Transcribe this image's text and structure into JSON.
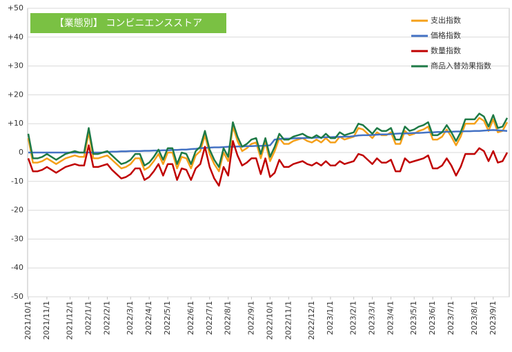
{
  "chart_data": {
    "type": "line",
    "title": "【業態別】 コンビニエンスストア",
    "title_color": "#7ac143",
    "legend": "top-right",
    "grid": true,
    "ylim": [
      -50,
      50
    ],
    "yticks": [
      {
        "value": 50,
        "label": "+50"
      },
      {
        "value": 40,
        "label": "+40"
      },
      {
        "value": 30,
        "label": "+30"
      },
      {
        "value": 20,
        "label": "+20"
      },
      {
        "value": 10,
        "label": "+10"
      },
      0,
      -10,
      -20,
      -30,
      -40,
      -50
    ],
    "categories": [
      "2021/10/1",
      null,
      null,
      null,
      "2021/11/1",
      null,
      null,
      null,
      null,
      "2021/12/1",
      null,
      null,
      null,
      "2022/1/1",
      null,
      null,
      null,
      "2022/2/1",
      null,
      null,
      null,
      null,
      "2022/3/1",
      null,
      null,
      null,
      "2022/4/1",
      null,
      null,
      null,
      "2022/5/1",
      null,
      null,
      null,
      null,
      "2022/6/1",
      null,
      null,
      null,
      "2022/7/1",
      null,
      null,
      null,
      "2022/8/1",
      null,
      null,
      null,
      null,
      "2022/9/1",
      null,
      null,
      null,
      "2022/10/1",
      null,
      null,
      null,
      "2022/11/1",
      null,
      null,
      null,
      null,
      "2022/12/1",
      null,
      null,
      null,
      "2023/1/1",
      null,
      null,
      null,
      null,
      "2023/2/1",
      null,
      null,
      null,
      "2023/3/1",
      null,
      null,
      null,
      "2023/4/1",
      null,
      null,
      null,
      null,
      "2023/5/1",
      null,
      null,
      null,
      "2023/6/1",
      null,
      null,
      null,
      "2023/7/1",
      null,
      null,
      null,
      null,
      "2023/8/1",
      null,
      null,
      null,
      "2023/9/1",
      null,
      null,
      null
    ],
    "series": [
      {
        "name": "支出指数",
        "color": "#f5a01a",
        "values": [
          5,
          -3.5,
          -3.5,
          -3,
          -2,
          -3,
          -4,
          -3,
          -2,
          -1.5,
          -1,
          -1.5,
          -1.5,
          7,
          -2,
          -2,
          -1.5,
          -1,
          -2.5,
          -4,
          -5.5,
          -5,
          -4,
          -2,
          -2,
          -6,
          -5,
          -3,
          -0.5,
          -4,
          0,
          0,
          -5.5,
          -1.5,
          -2,
          -5.5,
          -1,
          0.5,
          6,
          -0.5,
          -4,
          -6.5,
          0,
          -3,
          9,
          4,
          0.5,
          1.5,
          3,
          3.5,
          -2,
          3.5,
          -3,
          0.5,
          5,
          3,
          3,
          4,
          4.5,
          5,
          4,
          3.5,
          4.5,
          3.5,
          5,
          3.5,
          3.5,
          5.5,
          4.5,
          5,
          5.5,
          8.5,
          8,
          6.5,
          5,
          7,
          6,
          6,
          7,
          3,
          3,
          7.5,
          6,
          6.5,
          7.5,
          8,
          9,
          4.5,
          4.5,
          5.5,
          8,
          5.5,
          2.5,
          5.5,
          10,
          10,
          10,
          12,
          11,
          7.5,
          11.5,
          7,
          7.5,
          10.5
        ]
      },
      {
        "name": "価格指数",
        "color": "#4472c4",
        "values": [
          0,
          0,
          0,
          0,
          0,
          0,
          0,
          0,
          0,
          0,
          0,
          0,
          0,
          0,
          0,
          0,
          0,
          0.2,
          0.3,
          0.3,
          0.4,
          0.4,
          0.5,
          0.5,
          0.5,
          0.6,
          0.6,
          0.7,
          0.7,
          0.8,
          0.8,
          0.9,
          0.9,
          1,
          1,
          1.2,
          1.3,
          1.5,
          1.6,
          1.7,
          1.8,
          1.8,
          1.9,
          2,
          2,
          2.1,
          2.1,
          2.2,
          2.2,
          2.3,
          2.3,
          2.4,
          2.5,
          4.5,
          4.7,
          4.8,
          4.8,
          4.9,
          5,
          5,
          5.1,
          5.1,
          5.2,
          5.2,
          5.3,
          5.3,
          5.4,
          5.4,
          5.5,
          5.5,
          5.7,
          5.9,
          6,
          6,
          6.1,
          6.2,
          6.3,
          6.3,
          6.4,
          6.5,
          6.6,
          6.6,
          6.7,
          6.8,
          6.8,
          6.9,
          7,
          7,
          7.1,
          7.1,
          7.2,
          7.2,
          7.3,
          7.3,
          7.4,
          7.4,
          7.5,
          7.5,
          7.6,
          7.7,
          7.8,
          7.7,
          7.6,
          7.5
        ]
      },
      {
        "name": "数量指数",
        "color": "#c00000",
        "values": [
          -2,
          -6.5,
          -6.5,
          -6,
          -5,
          -6,
          -7,
          -6,
          -5,
          -4.5,
          -4,
          -4.5,
          -4.5,
          2.5,
          -5,
          -5,
          -4.5,
          -4,
          -6,
          -7.5,
          -9,
          -8.5,
          -7.5,
          -5.5,
          -5.5,
          -9.5,
          -8.5,
          -6.5,
          -4,
          -8,
          -4,
          -4,
          -9.5,
          -5.5,
          -6,
          -9.5,
          -5.5,
          -4,
          2,
          -5,
          -9,
          -11.5,
          -5,
          -8,
          4,
          -1,
          -4.5,
          -3.5,
          -2,
          -2,
          -7.5,
          -2,
          -8.5,
          -7,
          -2.5,
          -5,
          -5,
          -4,
          -3.5,
          -3,
          -4,
          -4.5,
          -3.5,
          -4.5,
          -3,
          -4.5,
          -4.5,
          -3,
          -4,
          -3.5,
          -3,
          -0.5,
          -1,
          -2.5,
          -4,
          -2,
          -3.5,
          -3.5,
          -2.5,
          -6.5,
          -6.5,
          -2,
          -3.5,
          -3,
          -2.5,
          -2,
          -1,
          -5.5,
          -5.5,
          -4.5,
          -2,
          -4.5,
          -8,
          -5,
          -0.5,
          -0.5,
          -0.5,
          1.5,
          0.5,
          -3,
          0.5,
          -3.5,
          -3,
          0
        ]
      },
      {
        "name": "商品入替効果指数",
        "color": "#1e7a46",
        "values": [
          6.5,
          -2,
          -2,
          -1.5,
          -0.5,
          -1.5,
          -2.5,
          -1.5,
          -0.5,
          0,
          0.5,
          0,
          0,
          8.5,
          -0.5,
          -0.5,
          0,
          0.5,
          -1,
          -2.5,
          -4,
          -3.5,
          -2.5,
          -0.5,
          -0.5,
          -4.5,
          -3.5,
          -1.5,
          1,
          -2.5,
          1.5,
          1.5,
          -4,
          0,
          -0.5,
          -4,
          0.5,
          2,
          7.5,
          1,
          -2.5,
          -5,
          1.5,
          -1.5,
          10.5,
          5.5,
          2,
          3,
          4.5,
          5,
          -0.5,
          5,
          -1.5,
          2,
          6.5,
          4.5,
          4.5,
          5.5,
          6,
          6.5,
          5.5,
          5,
          6,
          5,
          6.5,
          5,
          5,
          7,
          6,
          6.5,
          7,
          10,
          9.5,
          8,
          6.5,
          8.5,
          7.5,
          7.5,
          8.5,
          4.5,
          4.5,
          9,
          7.5,
          8,
          9,
          9.5,
          10.5,
          6,
          6,
          7,
          9.5,
          7,
          4,
          7,
          11.5,
          11.5,
          11.5,
          13.5,
          12.5,
          9,
          13,
          8.5,
          9,
          12
        ]
      }
    ]
  }
}
